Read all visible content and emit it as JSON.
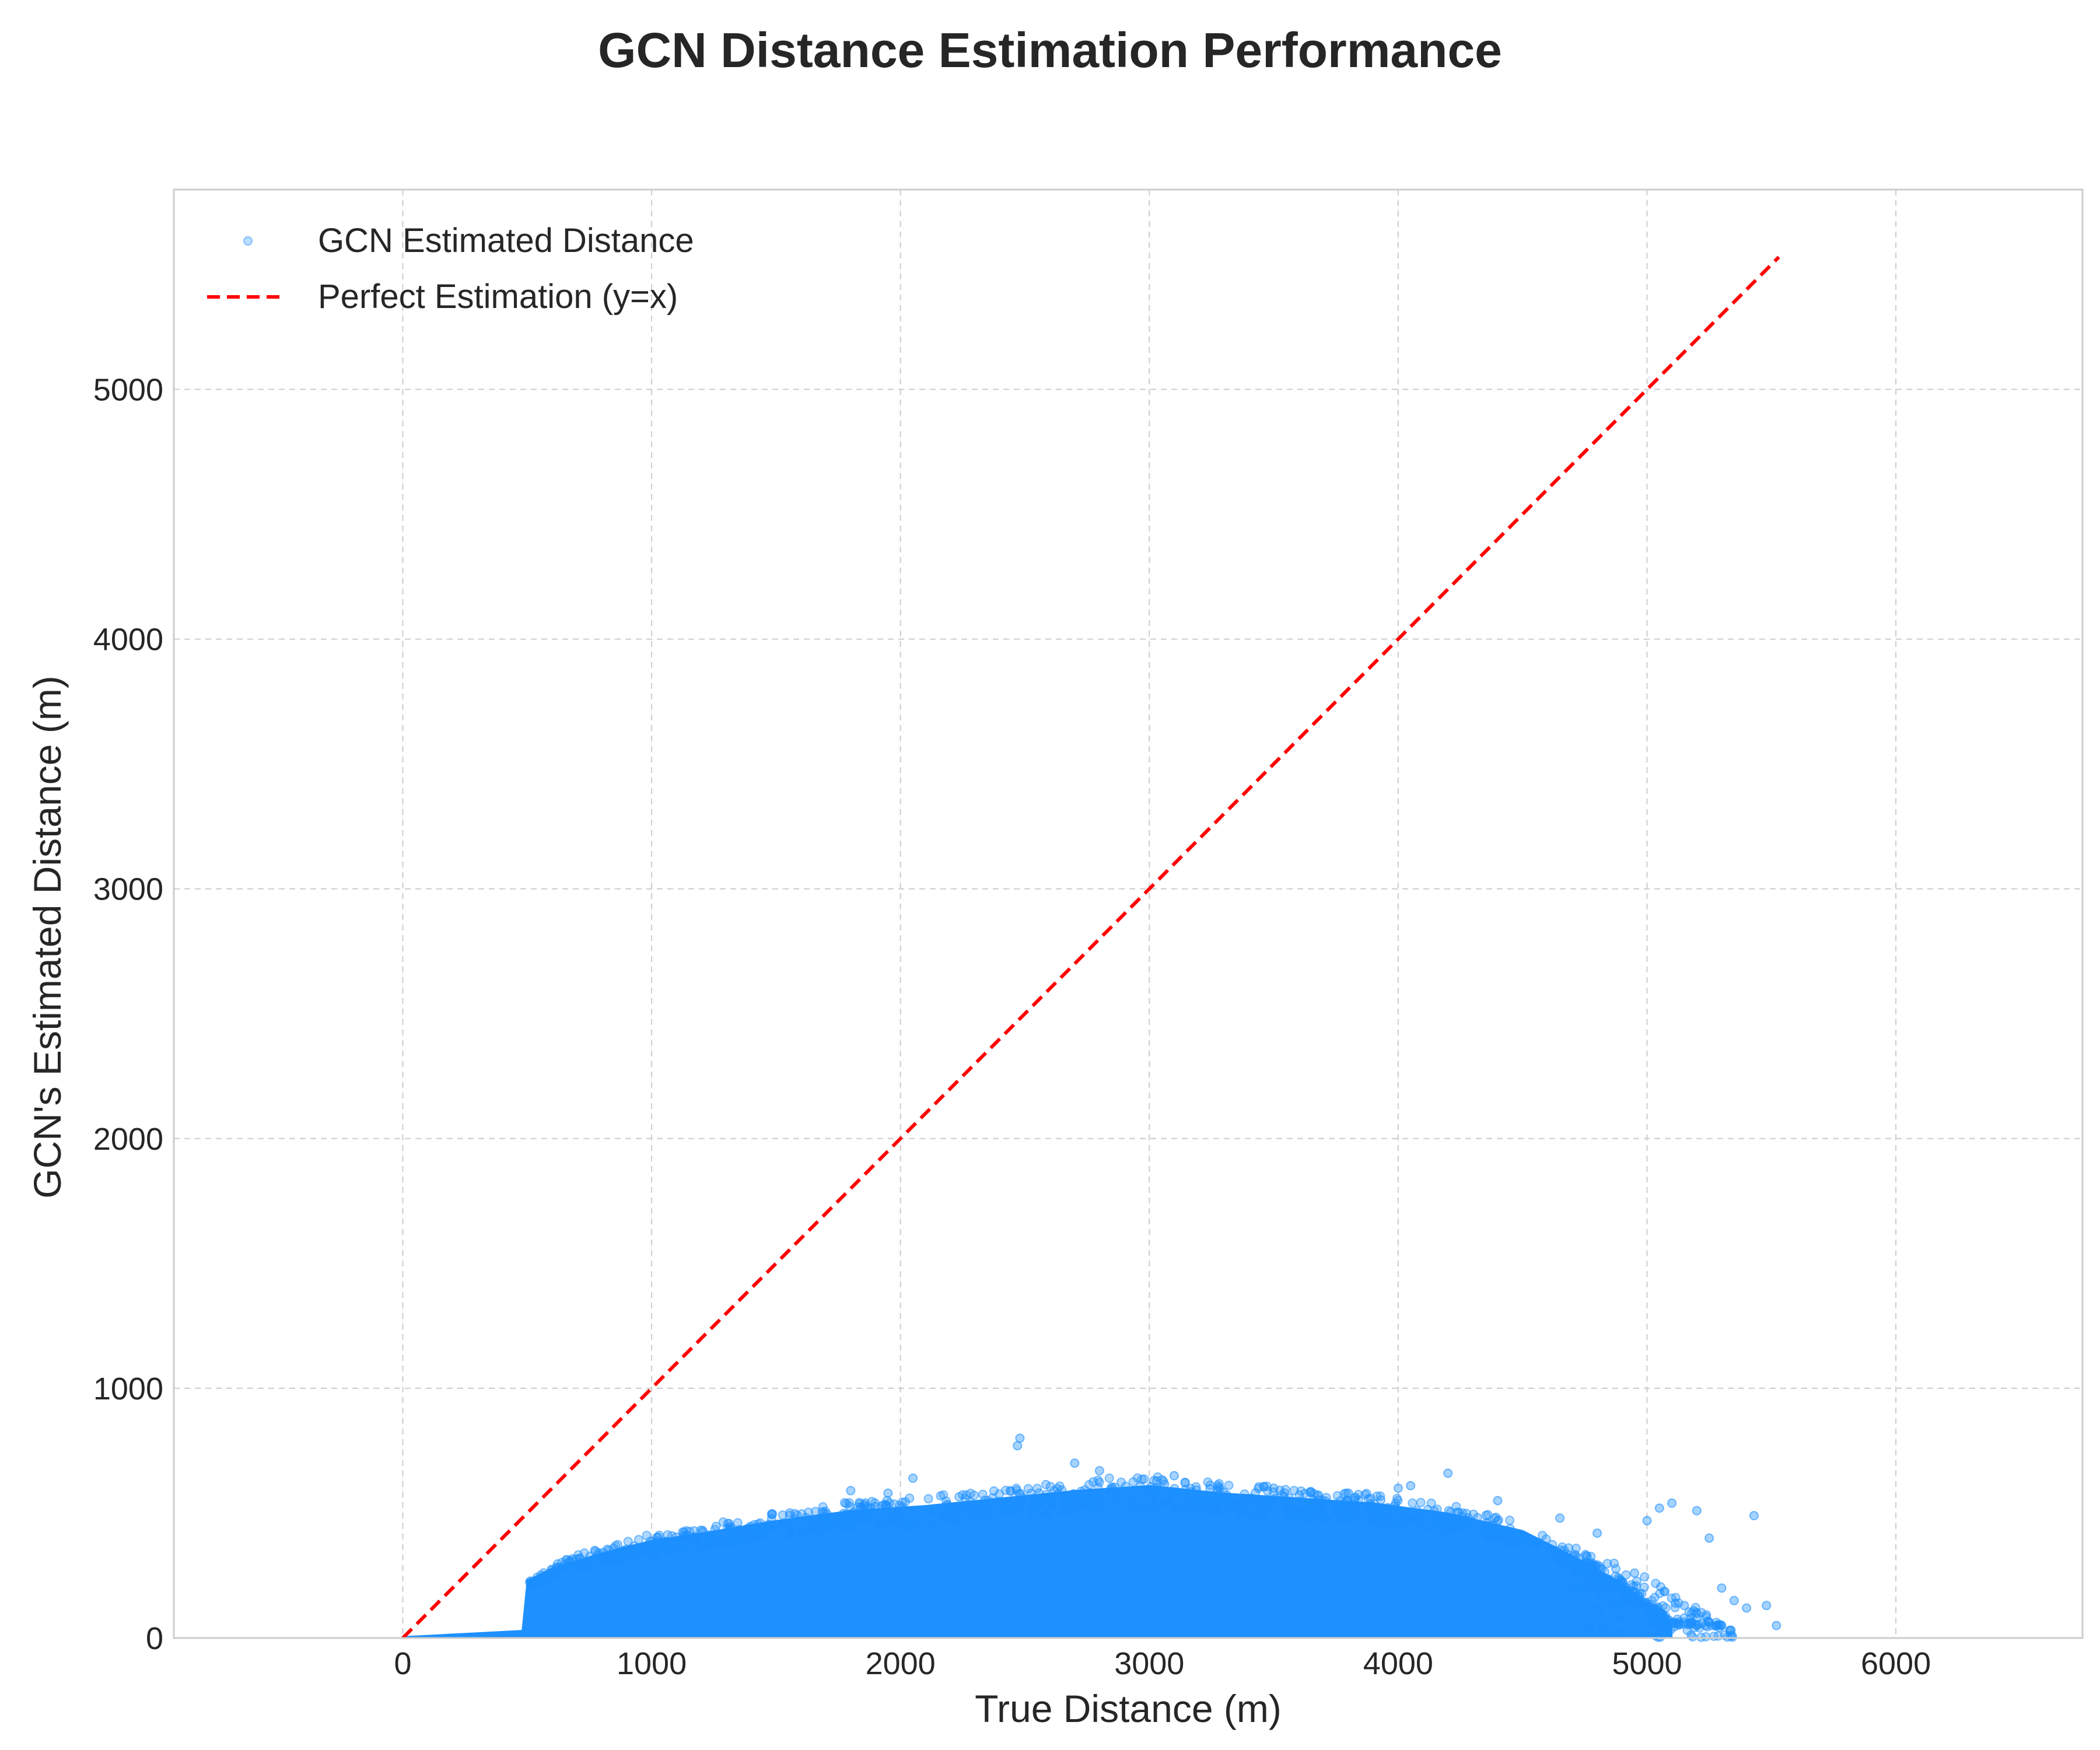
{
  "title": "GCN Distance Estimation Performance",
  "colors": {
    "scatter": "#1e90ff",
    "reference_line": "#ff0000",
    "grid": "#cccccc",
    "frame": "#cccccc",
    "text": "#262626"
  },
  "chart_data": {
    "type": "scatter",
    "title": "GCN Distance Estimation Performance",
    "xlabel": "True Distance (m)",
    "ylabel": "GCN's Estimated Distance (m)",
    "xlim": [
      -920,
      6750
    ],
    "ylim": [
      0,
      5800
    ],
    "xticks": [
      0,
      1000,
      2000,
      3000,
      4000,
      5000,
      6000
    ],
    "yticks": [
      0,
      1000,
      2000,
      3000,
      4000,
      5000
    ],
    "grid": true,
    "legend": {
      "position": "top-left",
      "entries": [
        "GCN Estimated Distance",
        "Perfect Estimation (y=x)"
      ]
    },
    "series": [
      {
        "name": "GCN Estimated Distance",
        "kind": "scatter",
        "envelope_upper": [
          [
            0,
            5
          ],
          [
            480,
            30
          ],
          [
            500,
            230
          ],
          [
            600,
            280
          ],
          [
            800,
            340
          ],
          [
            1000,
            390
          ],
          [
            1200,
            420
          ],
          [
            1500,
            470
          ],
          [
            1800,
            510
          ],
          [
            2100,
            530
          ],
          [
            2400,
            560
          ],
          [
            2700,
            590
          ],
          [
            3000,
            610
          ],
          [
            3300,
            580
          ],
          [
            3600,
            560
          ],
          [
            3900,
            540
          ],
          [
            4200,
            500
          ],
          [
            4500,
            430
          ],
          [
            4700,
            330
          ],
          [
            4900,
            220
          ],
          [
            5100,
            60
          ]
        ],
        "outliers": [
          [
            2480,
            800
          ],
          [
            2470,
            770
          ],
          [
            2700,
            700
          ],
          [
            2800,
            670
          ],
          [
            2050,
            640
          ],
          [
            3100,
            650
          ],
          [
            4200,
            660
          ],
          [
            4000,
            600
          ],
          [
            4050,
            610
          ],
          [
            4650,
            480
          ],
          [
            4800,
            420
          ],
          [
            5000,
            470
          ],
          [
            5050,
            520
          ],
          [
            5100,
            540
          ],
          [
            5200,
            510
          ],
          [
            5250,
            400
          ],
          [
            5430,
            490
          ],
          [
            5300,
            200
          ],
          [
            5350,
            150
          ],
          [
            5400,
            120
          ],
          [
            5480,
            130
          ],
          [
            5520,
            50
          ],
          [
            5150,
            130
          ],
          [
            5200,
            80
          ],
          [
            4950,
            260
          ],
          [
            1950,
            580
          ],
          [
            1800,
            590
          ],
          [
            3500,
            600
          ],
          [
            3800,
            580
          ],
          [
            4400,
            550
          ]
        ]
      },
      {
        "name": "Perfect Estimation (y=x)",
        "kind": "line",
        "style": "dashed",
        "x": [
          0,
          5530
        ],
        "y": [
          0,
          5530
        ]
      }
    ]
  }
}
